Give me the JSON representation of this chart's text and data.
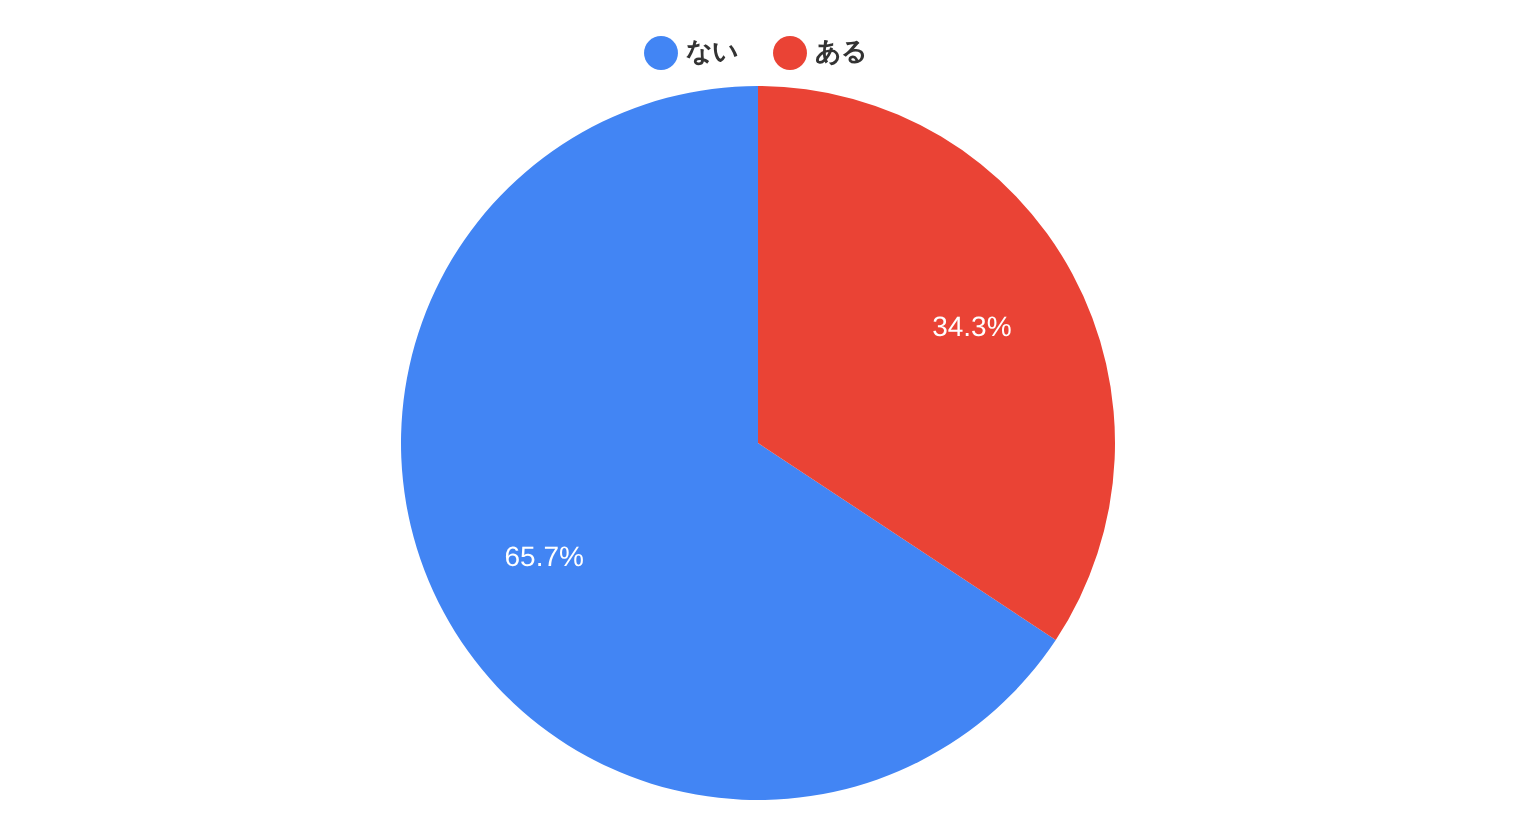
{
  "chart_data": {
    "type": "pie",
    "categories": [
      "ない",
      "ある"
    ],
    "values": [
      65.7,
      34.3
    ],
    "colors": [
      "#4285f4",
      "#ea4335"
    ],
    "value_labels": [
      "65.7%",
      "34.3%"
    ],
    "legend": "top"
  }
}
